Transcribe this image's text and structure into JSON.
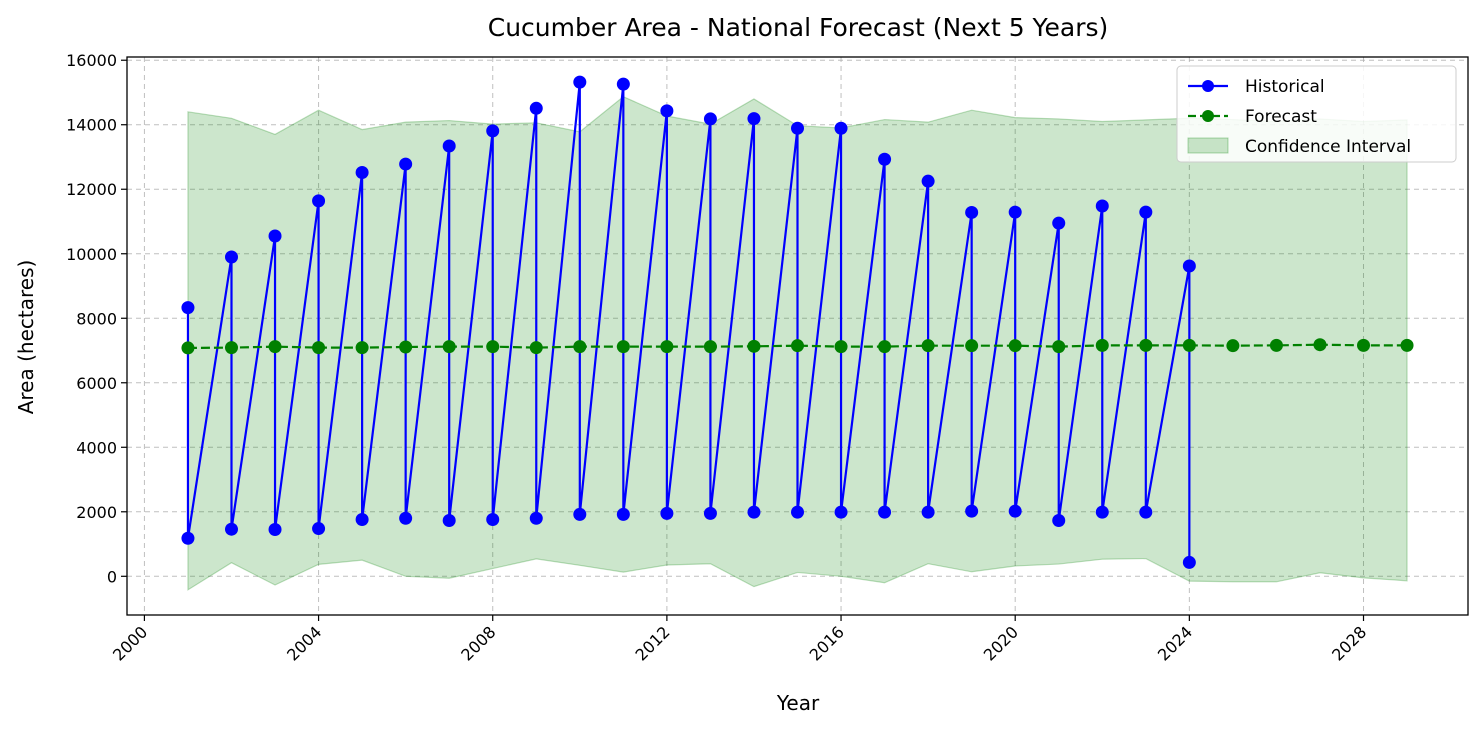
{
  "chart_data": {
    "type": "line",
    "title": "Cucumber Area - National Forecast (Next 5 Years)",
    "xlabel": "Year",
    "ylabel": "Area (hectares)",
    "xlim": [
      1999.6,
      2030.4
    ],
    "ylim": [
      -1200,
      16100
    ],
    "x_ticks": [
      2000,
      2004,
      2008,
      2012,
      2016,
      2020,
      2024,
      2028
    ],
    "y_ticks": [
      0,
      2000,
      4000,
      6000,
      8000,
      10000,
      12000,
      14000,
      16000
    ],
    "grid": true,
    "legend_position": "top-right",
    "colors": {
      "historical": "#0000ff",
      "forecast": "#008000",
      "confidence_fill": "#008000"
    },
    "series": [
      {
        "name": "Historical",
        "style": "solid-line-circle-markers",
        "points": [
          [
            2001,
            8330
          ],
          [
            2001,
            1180
          ],
          [
            2002,
            9900
          ],
          [
            2002,
            1460
          ],
          [
            2003,
            10550
          ],
          [
            2003,
            1450
          ],
          [
            2004,
            11640
          ],
          [
            2004,
            1480
          ],
          [
            2005,
            12520
          ],
          [
            2005,
            1760
          ],
          [
            2006,
            12780
          ],
          [
            2006,
            1800
          ],
          [
            2007,
            13340
          ],
          [
            2007,
            1730
          ],
          [
            2008,
            13810
          ],
          [
            2008,
            1760
          ],
          [
            2009,
            14510
          ],
          [
            2009,
            1800
          ],
          [
            2010,
            15320
          ],
          [
            2010,
            1920
          ],
          [
            2011,
            15260
          ],
          [
            2011,
            1920
          ],
          [
            2012,
            14430
          ],
          [
            2012,
            1950
          ],
          [
            2013,
            14180
          ],
          [
            2013,
            1950
          ],
          [
            2014,
            14190
          ],
          [
            2014,
            1990
          ],
          [
            2015,
            13890
          ],
          [
            2015,
            1990
          ],
          [
            2016,
            13890
          ],
          [
            2016,
            1990
          ],
          [
            2017,
            12930
          ],
          [
            2017,
            1990
          ],
          [
            2018,
            12250
          ],
          [
            2018,
            1990
          ],
          [
            2019,
            11280
          ],
          [
            2019,
            2020
          ],
          [
            2020,
            11290
          ],
          [
            2020,
            2020
          ],
          [
            2021,
            10950
          ],
          [
            2021,
            1730
          ],
          [
            2022,
            11480
          ],
          [
            2022,
            1990
          ],
          [
            2023,
            11290
          ],
          [
            2023,
            1990
          ],
          [
            2024,
            9620
          ],
          [
            2024,
            430
          ]
        ]
      },
      {
        "name": "Forecast",
        "style": "dashed-line-circle-markers",
        "points": [
          [
            2001,
            7080
          ],
          [
            2002,
            7090
          ],
          [
            2003,
            7120
          ],
          [
            2004,
            7090
          ],
          [
            2005,
            7090
          ],
          [
            2006,
            7110
          ],
          [
            2007,
            7120
          ],
          [
            2008,
            7120
          ],
          [
            2009,
            7090
          ],
          [
            2010,
            7120
          ],
          [
            2011,
            7120
          ],
          [
            2012,
            7120
          ],
          [
            2013,
            7120
          ],
          [
            2014,
            7130
          ],
          [
            2015,
            7150
          ],
          [
            2016,
            7120
          ],
          [
            2017,
            7120
          ],
          [
            2018,
            7150
          ],
          [
            2019,
            7150
          ],
          [
            2020,
            7150
          ],
          [
            2021,
            7120
          ],
          [
            2022,
            7160
          ],
          [
            2023,
            7160
          ],
          [
            2024,
            7160
          ],
          [
            2025,
            7150
          ],
          [
            2026,
            7160
          ],
          [
            2027,
            7180
          ],
          [
            2028,
            7160
          ],
          [
            2029,
            7160
          ]
        ]
      },
      {
        "name": "Confidence Interval",
        "style": "filled-band",
        "x": [
          2001,
          2002,
          2003,
          2004,
          2005,
          2006,
          2007,
          2008,
          2009,
          2010,
          2011,
          2012,
          2013,
          2014,
          2015,
          2016,
          2017,
          2018,
          2019,
          2020,
          2021,
          2022,
          2023,
          2024,
          2025,
          2026,
          2027,
          2028,
          2029
        ],
        "upper": [
          14400,
          14200,
          13700,
          14450,
          13850,
          14080,
          14130,
          14020,
          14060,
          13780,
          14870,
          14270,
          14020,
          14800,
          13970,
          13900,
          14160,
          14080,
          14450,
          14220,
          14180,
          14100,
          14150,
          14200,
          14160,
          14100,
          14180,
          14100,
          14150
        ],
        "lower": [
          -420,
          420,
          -270,
          370,
          500,
          0,
          -60,
          240,
          540,
          340,
          130,
          350,
          390,
          -320,
          120,
          0,
          -200,
          390,
          140,
          320,
          380,
          530,
          550,
          -150,
          -170,
          -170,
          110,
          -50,
          -140
        ]
      }
    ]
  }
}
